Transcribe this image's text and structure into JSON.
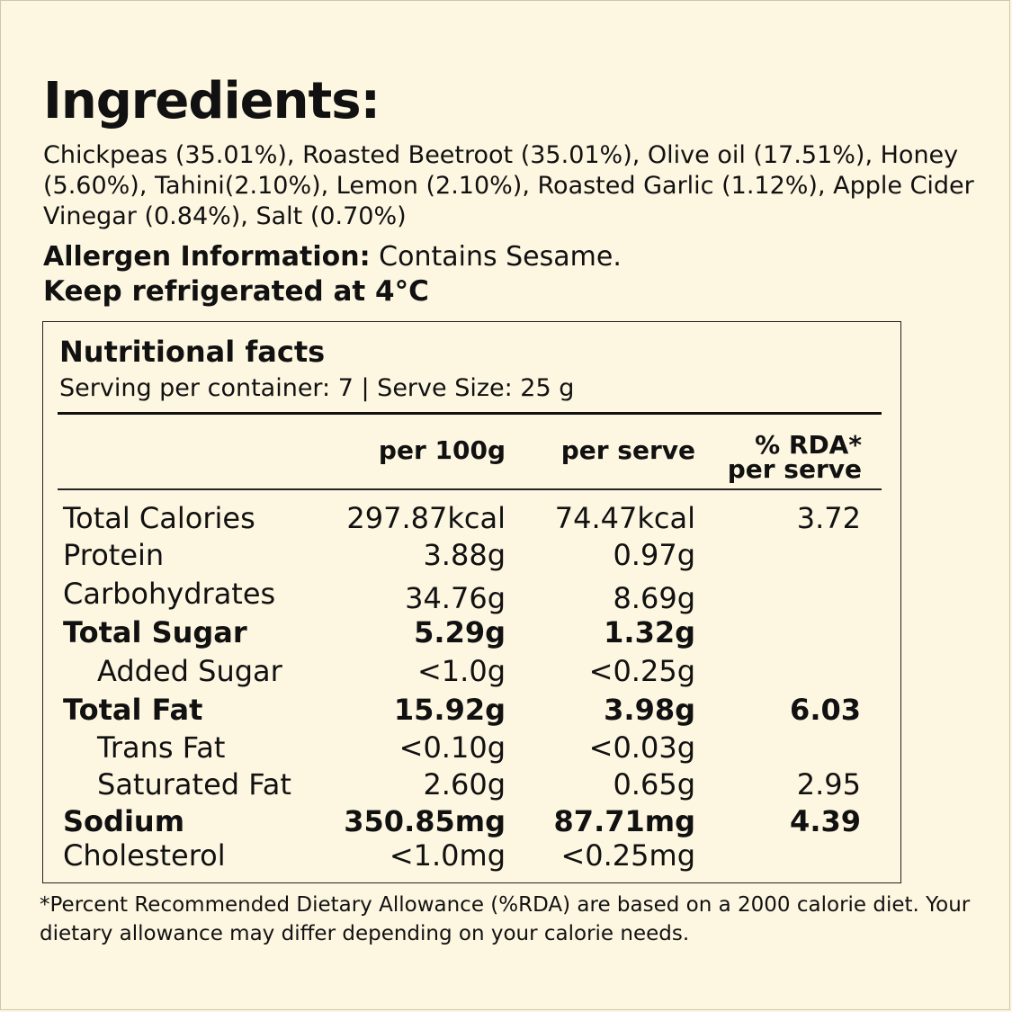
{
  "title": "Ingredients:",
  "ingredients": "Chickpeas (35.01%), Roasted Beetroot (35.01%), Olive oil (17.51%), Honey (5.60%), Tahini(2.10%), Lemon (2.10%), Roasted Garlic (1.12%), Apple Cider Vinegar (0.84%), Salt (0.70%)",
  "allergen_label": "Allergen Information:",
  "allergen_value": " Contains Sesame.",
  "storage": "Keep refrigerated at 4°C",
  "nutrition": {
    "title": "Nutritional facts",
    "serving": "Serving per container: 7 | Serve Size: 25 g",
    "headers": {
      "per100": "per 100g",
      "perserve": "per serve",
      "rda_line1": "% RDA*",
      "rda_line2": "per serve"
    },
    "rows": [
      {
        "name": "Total Calories",
        "per100": "297.87kcal",
        "perserve": "74.47kcal",
        "rda": "3.72"
      },
      {
        "name": "Protein",
        "per100": "3.88g",
        "perserve": "0.97g",
        "rda": ""
      },
      {
        "name": "Carbohydrates",
        "per100": "34.76g",
        "perserve": "8.69g",
        "rda": ""
      },
      {
        "name": "Total Sugar",
        "per100": "5.29g",
        "perserve": "1.32g",
        "rda": ""
      },
      {
        "name": "Added Sugar",
        "per100": "<1.0g",
        "perserve": "<0.25g",
        "rda": ""
      },
      {
        "name": "Total Fat",
        "per100": "15.92g",
        "perserve": "3.98g",
        "rda": "6.03"
      },
      {
        "name": "Trans Fat",
        "per100": "<0.10g",
        "perserve": "<0.03g",
        "rda": ""
      },
      {
        "name": "Saturated Fat",
        "per100": "2.60g",
        "perserve": "0.65g",
        "rda": "2.95"
      },
      {
        "name": "Sodium",
        "per100": "350.85mg",
        "perserve": "87.71mg",
        "rda": "4.39"
      },
      {
        "name": "Cholesterol",
        "per100": "<1.0mg",
        "perserve": "<0.25mg",
        "rda": ""
      }
    ]
  },
  "footnote": "*Percent Recommended Dietary Allowance (%RDA) are based on a 2000 calorie diet. Your dietary allowance may differ depending on your calorie needs."
}
